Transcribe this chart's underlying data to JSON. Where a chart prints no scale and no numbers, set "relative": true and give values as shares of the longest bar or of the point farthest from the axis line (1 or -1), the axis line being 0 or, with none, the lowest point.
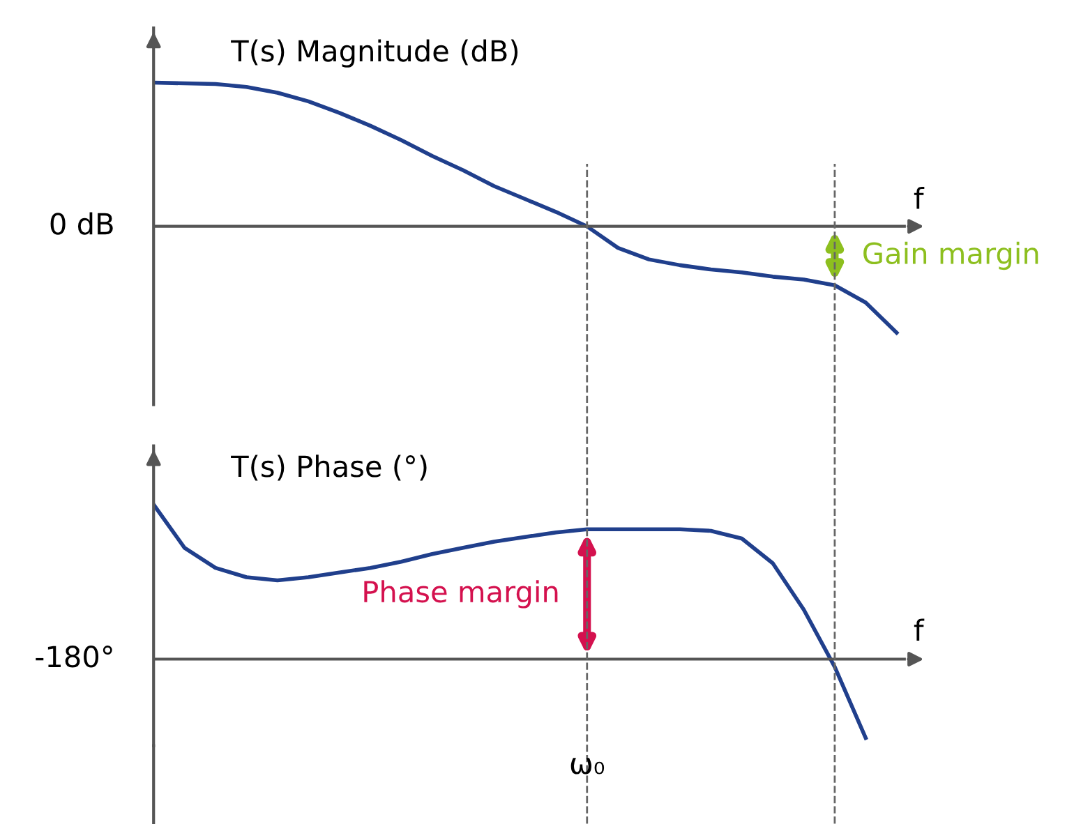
{
  "chart_data": [
    {
      "type": "line",
      "relative": true,
      "ylabel": "T(s) Magnitude (dB)",
      "xlabel": "f",
      "categories": [
        null,
        null,
        null,
        null,
        null,
        null,
        null,
        null,
        null,
        null,
        null,
        null,
        null,
        null,
        null,
        null,
        null,
        null,
        null,
        null,
        null,
        null,
        null,
        null,
        null
      ],
      "series": [
        {
          "color": "#203f8c",
          "values": [
            1.0,
            0.995,
            0.99,
            0.97,
            0.93,
            0.87,
            0.79,
            0.7,
            0.6,
            0.49,
            0.39,
            0.28,
            0.19,
            0.1,
            0.0,
            -0.15,
            -0.23,
            -0.27,
            -0.3,
            -0.32,
            -0.35,
            -0.37,
            -0.41,
            -0.53,
            -0.74
          ]
        }
      ],
      "annotations": [
        "0 dB",
        "Gain margin"
      ]
    },
    {
      "type": "line",
      "relative": true,
      "ylabel": "T(s) Phase (°)",
      "xlabel": "f",
      "categories": [
        null,
        null,
        null,
        null,
        null,
        null,
        null,
        null,
        null,
        null,
        null,
        null,
        null,
        null,
        null,
        null,
        null,
        null,
        null,
        null,
        null,
        null,
        null,
        null,
        null
      ],
      "series": [
        {
          "color": "#203f8c",
          "values": [
            1.0,
            0.72,
            0.59,
            0.53,
            0.51,
            0.53,
            0.56,
            0.59,
            0.63,
            0.68,
            0.72,
            0.76,
            0.79,
            0.82,
            0.84,
            0.84,
            0.84,
            0.84,
            0.83,
            0.78,
            0.62,
            0.32,
            -0.05,
            -0.51,
            null
          ]
        }
      ],
      "annotations": [
        "-180°",
        "Phase margin",
        "ω₀"
      ]
    }
  ]
}
